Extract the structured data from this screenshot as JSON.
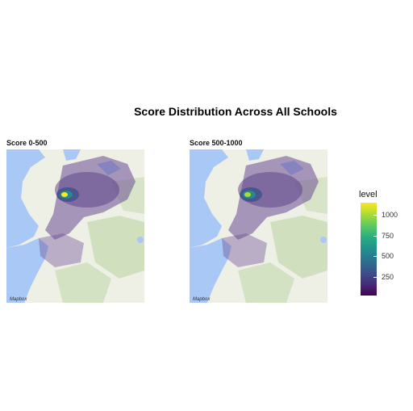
{
  "title": "Score Distribution Across All Schools",
  "panels": [
    {
      "label": "Score 0-500"
    },
    {
      "label": "Score 500-1000"
    }
  ],
  "legend": {
    "title": "level",
    "ticks": [
      "1000",
      "750",
      "500",
      "250"
    ],
    "tick_values": [
      1000,
      750,
      500,
      250
    ],
    "range": [
      0,
      1150
    ],
    "palette": "viridis"
  },
  "map": {
    "credit": "Mapbox",
    "colors": {
      "water": "#a9c8f5",
      "land": "#eef0e6",
      "forest": "#c8dcb4",
      "density": "#6a4c93",
      "hotspot": "#fde725"
    }
  }
}
